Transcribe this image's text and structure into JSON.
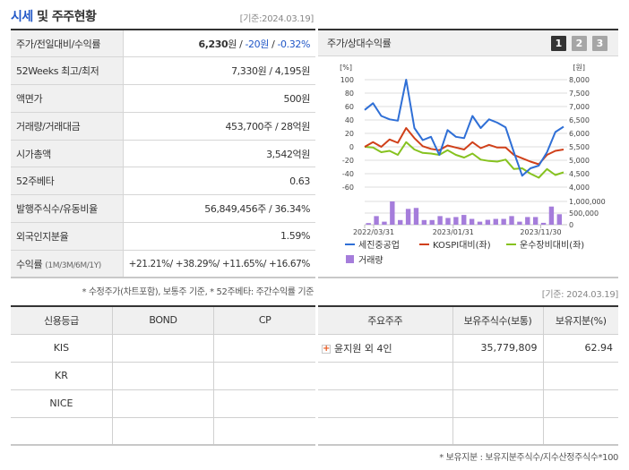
{
  "header": {
    "title_highlight": "시세",
    "title_rest": " 및 주주현황",
    "date": "[기준:2024.03.19]"
  },
  "info_table": {
    "rows": [
      {
        "label": "주가/전일대비/수익률",
        "price": "6,230",
        "price_unit": "원",
        "sep1": " / ",
        "change": "-20원",
        "sep2": " / ",
        "change_pct": "-0.32%"
      },
      {
        "label": "52Weeks 최고/최저",
        "value": "7,330원 / 4,195원"
      },
      {
        "label": "액면가",
        "value": "500원"
      },
      {
        "label": "거래량/거래대금",
        "value": "453,700주 / 28억원"
      },
      {
        "label": "시가총액",
        "value": "3,542억원"
      },
      {
        "label": "52주베타",
        "value": "0.63"
      },
      {
        "label": "발행주식수/유동비율",
        "value": "56,849,456주 / 36.34%"
      },
      {
        "label": "외국인지분율",
        "value": "1.59%"
      },
      {
        "label": "수익률",
        "label_sub": "(1M/3M/6M/1Y)",
        "value": "+21.21%/ +38.29%/ +11.65%/ +16.67%"
      }
    ],
    "note": "* 수정주가(차트포함), 보통주 기준, * 52주베타: 주간수익률 기준"
  },
  "chart_panel": {
    "title": "주가/상대수익률",
    "pages": [
      "1",
      "2",
      "3"
    ],
    "active_page": "1",
    "left_unit": "[%]",
    "right_unit": "[원]"
  },
  "chart_data": {
    "type": "line",
    "title": "주가/상대수익률",
    "x_tick_labels": [
      "2022/03/31",
      "2023/01/31",
      "2023/11/30"
    ],
    "left_axis": {
      "label": "[%]",
      "ticks": [
        100,
        80,
        60,
        40,
        20,
        0,
        -20,
        -40,
        -60
      ],
      "range": [
        -60,
        100
      ]
    },
    "right_axis": {
      "label": "[원]",
      "ticks": [
        "8,000",
        "7,500",
        "7,000",
        "6,500",
        "6,000",
        "5,500",
        "5,000",
        "4,500",
        "4,000"
      ],
      "range": [
        4000,
        8000
      ]
    },
    "volume_axis": {
      "ticks": [
        "1,000,000",
        "500,000",
        "0"
      ],
      "range": [
        0,
        1000000
      ]
    },
    "series": [
      {
        "name": "세진중공업",
        "color": "#2f6fd6",
        "values": [
          55,
          65,
          46,
          41,
          39,
          100,
          28,
          10,
          15,
          -12,
          25,
          15,
          13,
          46,
          28,
          41,
          36,
          29,
          -8,
          -43,
          -32,
          -28,
          -8,
          22,
          30
        ]
      },
      {
        "name": "KOSPI대비(좌)",
        "color": "#d0401a",
        "values": [
          0,
          7,
          0,
          11,
          6,
          28,
          13,
          1,
          -3,
          -5,
          2,
          -1,
          -4,
          7,
          -2,
          3,
          -1,
          -1,
          -12,
          -17,
          -22,
          -26,
          -12,
          -6,
          -4
        ]
      },
      {
        "name": "운수장비대비(좌)",
        "color": "#86c21f",
        "values": [
          0,
          -1,
          -8,
          -6,
          -12,
          7,
          -4,
          -9,
          -10,
          -12,
          -5,
          -12,
          -16,
          -10,
          -19,
          -21,
          -22,
          -19,
          -33,
          -32,
          -40,
          -46,
          -33,
          -42,
          -38
        ]
      },
      {
        "name": "거래량",
        "color": "#a57ddb",
        "type": "bar",
        "values": [
          70000,
          370000,
          130000,
          1000000,
          200000,
          680000,
          720000,
          200000,
          200000,
          370000,
          290000,
          330000,
          420000,
          250000,
          130000,
          210000,
          250000,
          250000,
          370000,
          130000,
          330000,
          330000,
          80000,
          780000,
          450000
        ]
      }
    ],
    "legend": [
      "세진중공업",
      "KOSPI대비(좌)",
      "운수장비대비(좌)",
      "거래량"
    ],
    "grid": true,
    "legend_position": "bottom"
  },
  "holders_date": "[기준: 2024.03.19]",
  "credit_table": {
    "headers": [
      "신용등급",
      "BOND",
      "CP"
    ],
    "rows": [
      [
        "KIS",
        "",
        ""
      ],
      [
        "KR",
        "",
        ""
      ],
      [
        "NICE",
        "",
        ""
      ],
      [
        "",
        "",
        ""
      ]
    ]
  },
  "holders_table": {
    "headers": [
      "주요주주",
      "보유주식수(보통)",
      "보유지분(%)"
    ],
    "rows": [
      {
        "name": "윤지원 외 4인",
        "shares": "35,779,809",
        "pct": "62.94"
      },
      {
        "name": "",
        "shares": "",
        "pct": ""
      },
      {
        "name": "",
        "shares": "",
        "pct": ""
      },
      {
        "name": "",
        "shares": "",
        "pct": ""
      }
    ],
    "note": "* 보유지분 : 보유지분주식수/지수산정주식수*100"
  }
}
